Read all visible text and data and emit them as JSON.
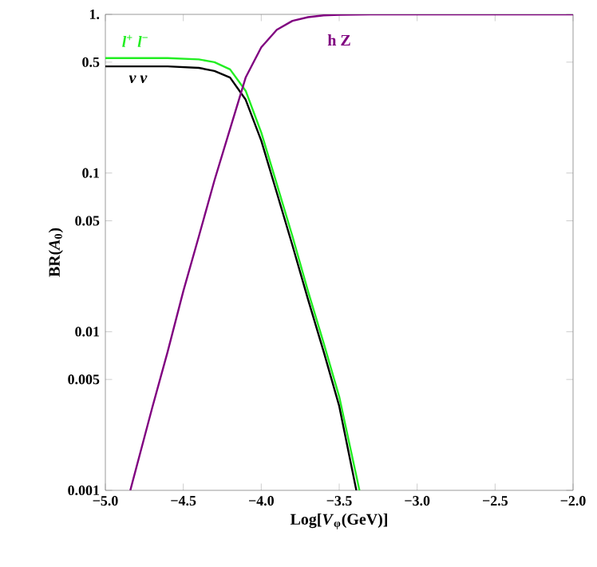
{
  "chart_data": {
    "type": "line",
    "xlabel": "Log[*V*$_{φ}$(GeV)]",
    "ylabel": "BR(*A*$_{0}$)",
    "log": "y",
    "legend": false,
    "grid": false,
    "xlim": [
      -5,
      -2
    ],
    "ylim": [
      0.001,
      1
    ],
    "xticks": [
      {
        "value": -5,
        "label": "−5.0"
      },
      {
        "value": -4.5,
        "label": "−4.5"
      },
      {
        "value": -4,
        "label": "−4.0"
      },
      {
        "value": -3.5,
        "label": "−3.5"
      },
      {
        "value": -3,
        "label": "−3.0"
      },
      {
        "value": -2.5,
        "label": "−2.5"
      },
      {
        "value": -2,
        "label": "−2.0"
      }
    ],
    "yticks": [
      0.001,
      0.005,
      0.01,
      0.05,
      0.1,
      0.5,
      {
        "value": 1,
        "label": "1."
      }
    ],
    "series": [
      {
        "name": "*l*$^{+}$ *l*$^{−}$",
        "color": "#22ee22",
        "x": [
          -5,
          -4.6,
          -4.4,
          -4.3,
          -4.2,
          -4.1,
          -4.0,
          -3.9,
          -3.8,
          -3.7,
          -3.6,
          -3.5,
          -3.37
        ],
        "values": [
          0.53,
          0.53,
          0.52,
          0.5,
          0.45,
          0.33,
          0.18,
          0.085,
          0.04,
          0.018,
          0.0085,
          0.0039,
          0.001
        ]
      },
      {
        "name": "*ν ν*",
        "color": "#000000",
        "x": [
          -5,
          -4.6,
          -4.4,
          -4.3,
          -4.2,
          -4.1,
          -4.0,
          -3.9,
          -3.8,
          -3.7,
          -3.6,
          -3.5,
          -3.39
        ],
        "values": [
          0.47,
          0.47,
          0.46,
          0.44,
          0.4,
          0.29,
          0.16,
          0.075,
          0.035,
          0.016,
          0.0075,
          0.0034,
          0.001
        ]
      },
      {
        "name": "h Z",
        "color": "#800080",
        "x": [
          -4.84,
          -4.7,
          -4.6,
          -4.5,
          -4.4,
          -4.3,
          -4.2,
          -4.1,
          -4.0,
          -3.9,
          -3.8,
          -3.7,
          -3.6,
          -3.5,
          -3.3,
          -2.0
        ],
        "values": [
          0.001,
          0.0033,
          0.0075,
          0.018,
          0.04,
          0.09,
          0.19,
          0.4,
          0.62,
          0.8,
          0.91,
          0.96,
          0.985,
          0.995,
          1.0,
          1.0
        ]
      }
    ]
  }
}
